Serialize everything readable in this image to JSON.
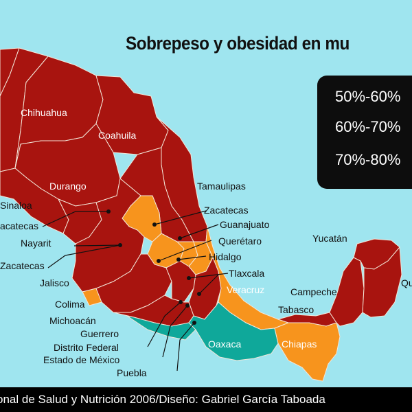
{
  "title": "Sobrepeso y obesidad en mu",
  "legend": {
    "items": [
      {
        "label": "50%-60%",
        "color": "#f7941d"
      },
      {
        "label": "60%-70%",
        "color": "#0fa89a"
      },
      {
        "label": "70%-80%",
        "color": "#a8140f"
      }
    ]
  },
  "colors": {
    "sea": "#9fe5ef",
    "range_50_60": "#f7941d",
    "range_60_70": "#0fa89a",
    "range_70_80": "#a8140f",
    "border": "#f3e6d8"
  },
  "labels": {
    "chihuahua": "Chihuahua",
    "coahuila": "Coahuila",
    "durango": "Durango",
    "tamaulipas": "Tamaulipas",
    "sinaloa": "Sinaloa",
    "zacatecas_top": "Zacatecas",
    "zacatecas_left": "acatecas",
    "guanajuato": "Guanajuato",
    "nayarit": "Nayarit",
    "queretaro": "Querétaro",
    "zacatecas_left2": "Zacatecas",
    "hidalgo": "Hidalgo",
    "yucatan": "Yucatán",
    "tlaxcala": "Tlaxcala",
    "jalisco": "Jalisco",
    "veracruz": "Veracruz",
    "campeche": "Campeche",
    "quintana_roo": "Qu",
    "colima": "Colima",
    "tabasco": "Tabasco",
    "michoacan": "Michoacán",
    "guerrero": "Guerrero",
    "oaxaca": "Oaxaca",
    "chiapas": "Chiapas",
    "distrito_federal": "Distrito Federal",
    "estado_mexico": "Estado de México",
    "puebla": "Puebla"
  },
  "footer": "onal de Salud y Nutrición 2006/Diseño: Gabriel García Taboada"
}
